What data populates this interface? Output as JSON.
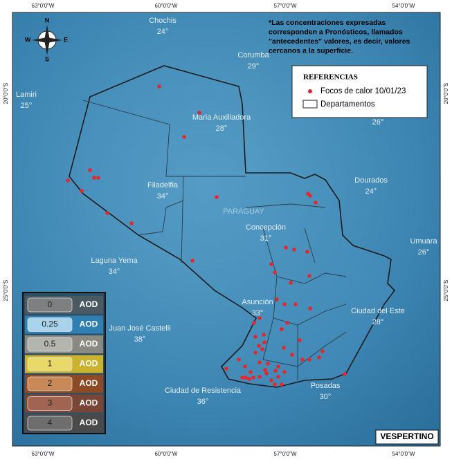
{
  "coordinates": {
    "longitudes": [
      "63°0'0\"W",
      "60°0'0\"W",
      "57°0'0\"W",
      "54°0'0\"W"
    ],
    "latitudes": [
      "20°0'0\"S",
      "25°0'0\"S"
    ]
  },
  "compass": {
    "n": "N",
    "s": "S",
    "e": "E",
    "w": "W"
  },
  "note": [
    "*Las concentraciones expresadas",
    "corresponden a Pronósticos, llamados",
    "\"antecedentes\" valores, es decir, valores",
    "cercanos a la superficie."
  ],
  "legend": {
    "title": "REFERENCIAS",
    "items": [
      "Focos de calor 10/01/23",
      "Departamentos"
    ]
  },
  "cities": [
    {
      "name": "Chochis",
      "temp": "24°"
    },
    {
      "name": "Corumba",
      "temp": "29°"
    },
    {
      "name": "Lamiri",
      "temp": "25°"
    },
    {
      "name": "Maria Auxiliadora",
      "temp": "28°"
    },
    {
      "name": null,
      "temp": "26°"
    },
    {
      "name": "Dourados",
      "temp": "24°"
    },
    {
      "name": "Filadelfia",
      "temp": "34°"
    },
    {
      "name": "Concepción",
      "temp": "31°"
    },
    {
      "name": "Umuara",
      "temp": "26°"
    },
    {
      "name": "Laguna Yema",
      "temp": "34°"
    },
    {
      "name": "Asunción",
      "temp": "33°"
    },
    {
      "name": "Ciudad del Este",
      "temp": "28°"
    },
    {
      "name": "Juan José Castelli",
      "temp": "38°"
    },
    {
      "name": "Posadas",
      "temp": "30°"
    },
    {
      "name": "Ciudad de Resistencia",
      "temp": "36°"
    }
  ],
  "country": "PARAGUAY",
  "aod_scale": {
    "levels": [
      "0",
      "0.25",
      "0.5",
      "1",
      "2",
      "3",
      "4"
    ],
    "unit": "AOD"
  },
  "period": "VESPERTINO"
}
